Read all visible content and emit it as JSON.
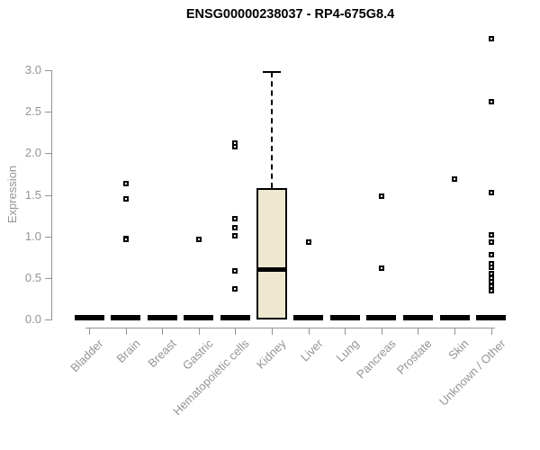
{
  "title": "ENSG00000238037 - RP4-675G8.4",
  "chart_data": {
    "type": "boxplot",
    "title": "ENSG00000238037 - RP4-675G8.4",
    "xlabel": "",
    "ylabel": "Expression",
    "ylim": [
      0,
      3.45
    ],
    "yticks": [
      0,
      0.5,
      1,
      1.5,
      2,
      2.5,
      3
    ],
    "ytick_labels": [
      "0.0",
      "0.5",
      "1.0",
      "1.5",
      "2.0",
      "2.5",
      "3.0"
    ],
    "grid": false,
    "legend": null,
    "categories": [
      "Bladder",
      "Brain",
      "Breast",
      "Gastric",
      "Hematopoietic cells",
      "Kidney",
      "Liver",
      "Lung",
      "Pancreas",
      "Prostate",
      "Skin",
      "Unknown / Other"
    ],
    "series": [
      {
        "category": "Bladder",
        "q1": 0,
        "median": 0,
        "q3": 0,
        "whisker_low": 0,
        "whisker_high": 0,
        "outliers": []
      },
      {
        "category": "Brain",
        "q1": 0,
        "median": 0,
        "q3": 0,
        "whisker_low": 0,
        "whisker_high": 0,
        "outliers": [
          1.64,
          1.45,
          0.98,
          0.97,
          0.96
        ]
      },
      {
        "category": "Breast",
        "q1": 0,
        "median": 0,
        "q3": 0,
        "whisker_low": 0,
        "whisker_high": 0,
        "outliers": []
      },
      {
        "category": "Gastric",
        "q1": 0,
        "median": 0,
        "q3": 0,
        "whisker_low": 0,
        "whisker_high": 0,
        "outliers": [
          0.96
        ]
      },
      {
        "category": "Hematopoietic cells",
        "q1": 0,
        "median": 0,
        "q3": 0,
        "whisker_low": 0,
        "whisker_high": 0,
        "outliers": [
          2.12,
          2.08,
          1.21,
          1.1,
          1.01,
          0.58,
          0.37
        ]
      },
      {
        "category": "Kidney",
        "q1": 0,
        "median": 0.6,
        "q3": 1.58,
        "whisker_low": 0,
        "whisker_high": 2.98,
        "outliers": []
      },
      {
        "category": "Liver",
        "q1": 0,
        "median": 0,
        "q3": 0,
        "whisker_low": 0,
        "whisker_high": 0,
        "outliers": [
          0.93
        ]
      },
      {
        "category": "Lung",
        "q1": 0,
        "median": 0,
        "q3": 0,
        "whisker_low": 0,
        "whisker_high": 0,
        "outliers": []
      },
      {
        "category": "Pancreas",
        "q1": 0,
        "median": 0,
        "q3": 0,
        "whisker_low": 0,
        "whisker_high": 0,
        "outliers": [
          1.48,
          0.62
        ]
      },
      {
        "category": "Prostate",
        "q1": 0,
        "median": 0,
        "q3": 0,
        "whisker_low": 0,
        "whisker_high": 0,
        "outliers": []
      },
      {
        "category": "Skin",
        "q1": 0,
        "median": 0,
        "q3": 0,
        "whisker_low": 0,
        "whisker_high": 0,
        "outliers": [
          1.69
        ]
      },
      {
        "category": "Unknown / Other",
        "q1": 0,
        "median": 0,
        "q3": 0,
        "whisker_low": 0,
        "whisker_high": 0,
        "outliers": [
          3.38,
          2.62,
          1.53,
          1.02,
          0.93,
          0.78,
          0.67,
          0.63,
          0.55,
          0.5,
          0.45,
          0.4,
          0.35
        ]
      }
    ],
    "colors": {
      "box_fill": "#ede8cf",
      "box_border": "#000000",
      "median": "#000000",
      "zero_bar": "#000000",
      "outlier": "#000000",
      "axis": "#949494",
      "tick_text": "#949494",
      "title_text": "#000000",
      "background": "#ffffff"
    }
  }
}
